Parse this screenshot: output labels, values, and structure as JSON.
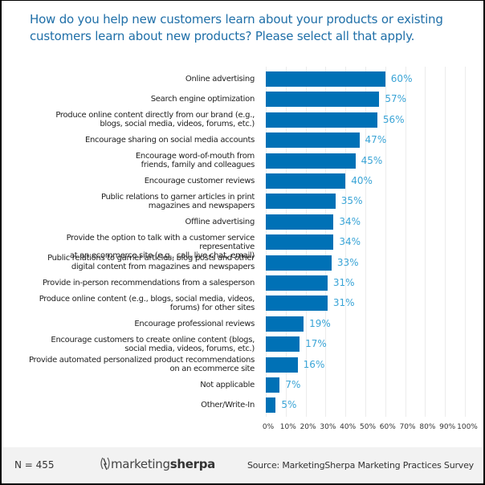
{
  "chart_data": {
    "type": "bar",
    "orientation": "horizontal",
    "title": "How do you help new customers learn about your products or existing customers learn about new products? Please select all that apply.",
    "xlabel": "",
    "ylabel": "",
    "xlim": [
      0,
      100
    ],
    "grid": true,
    "legend": null,
    "x_tick_labels": [
      "0%",
      "10%",
      "20%",
      "30%",
      "40%",
      "50%",
      "60%",
      "70%",
      "80%",
      "90%",
      "100%"
    ],
    "categories": [
      "Online advertising",
      "Search engine optimization",
      "Produce online content directly from our brand (e.g., blogs, social media, videos, forums, etc.)",
      "Encourage sharing on social media accounts",
      "Encourage word-of-mouth from friends, family and colleagues",
      "Encourage customer reviews",
      "Public relations to garner articles in print magazines and newspapers",
      "Offline advertising",
      "Provide the option to talk with a customer service representative at an ecommerce site (e.g., call, live chat, email)",
      "Public relations to garner articles, blog posts and other digital content from magazines and newspapers",
      "Provide in-person recommendations from a salesperson",
      "Produce online content (e.g., blogs, social media, videos, forums) for other sites",
      "Encourage professional reviews",
      "Encourage customers to create online content (blogs, social media, videos, forums, etc.)",
      "Provide automated personalized product recommendations on an ecommerce site",
      "Not applicable",
      "Other/Write-In"
    ],
    "values": [
      60,
      57,
      56,
      47,
      45,
      40,
      35,
      34,
      34,
      33,
      31,
      31,
      19,
      17,
      16,
      7,
      5
    ],
    "value_labels": [
      "60%",
      "57%",
      "56%",
      "47%",
      "45%",
      "40%",
      "35%",
      "34%",
      "34%",
      "33%",
      "31%",
      "31%",
      "19%",
      "17%",
      "16%",
      "7%",
      "5%"
    ],
    "bar_color": "#0071b6",
    "value_label_color": "#3aa4d6"
  },
  "title_lines": [
    "How do you help new customers learn about your products or existing",
    "customers learn about new products? Please select all that apply."
  ],
  "label_lines": [
    [
      "Online advertising"
    ],
    [
      "Search engine optimization"
    ],
    [
      "Produce online content directly from our brand (e.g.,",
      "blogs, social media, videos, forums, etc.)"
    ],
    [
      "Encourage sharing on social media accounts"
    ],
    [
      "Encourage word-of-mouth from",
      "friends, family and colleagues"
    ],
    [
      "Encourage customer reviews"
    ],
    [
      "Public relations to garner articles in print",
      "magazines and newspapers"
    ],
    [
      "Offline advertising"
    ],
    [
      "Provide the option to talk with a customer service representative",
      "at an ecommerce site (e.g., call, live chat, email)"
    ],
    [
      "Public relations to garner articles, blog posts and other",
      "digital content from magazines and newspapers"
    ],
    [
      "Provide in-person recommendations from a salesperson"
    ],
    [
      "Produce online content (e.g., blogs, social media, videos,",
      "forums) for other sites"
    ],
    [
      "Encourage professional reviews"
    ],
    [
      "Encourage customers to create online content (blogs,",
      "social media, videos, forums, etc.)"
    ],
    [
      "Provide automated personalized product recommendations",
      "on an ecommerce site"
    ],
    [
      "Not applicable"
    ],
    [
      "Other/Write-In"
    ]
  ],
  "footer": {
    "sample_size": "N = 455",
    "logo_light": "marketing",
    "logo_bold": "sherpa",
    "source": "Source: MarketingSherpa Marketing Practices Survey"
  }
}
